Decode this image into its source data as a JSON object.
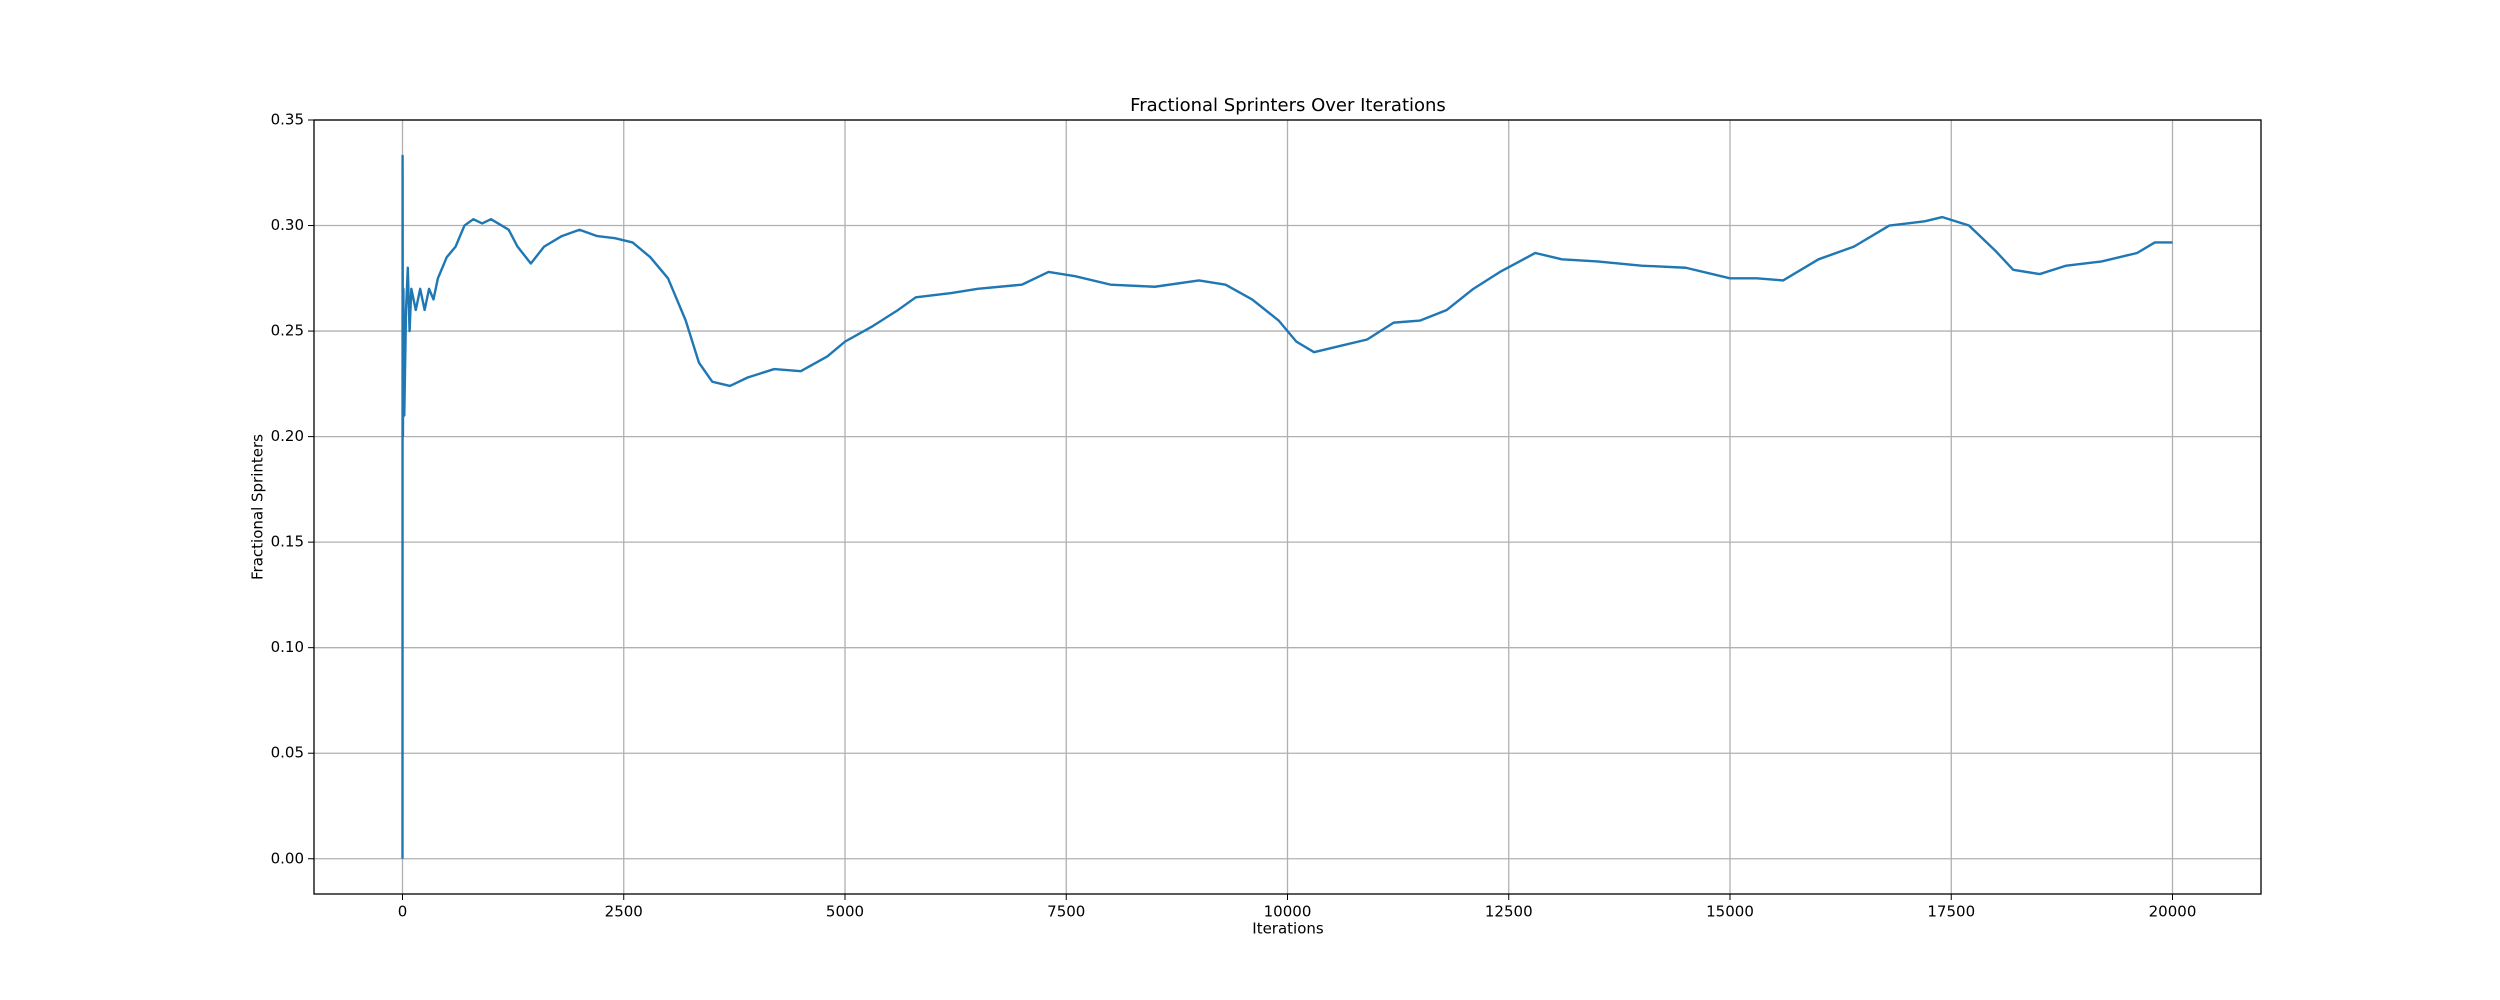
{
  "chart_data": {
    "type": "line",
    "title": "Fractional Sprinters Over Iterations",
    "x_label": "Iterations",
    "y_label": "Fractional Sprinters",
    "x": [
      0,
      1,
      3,
      5,
      10,
      20,
      40,
      60,
      80,
      100,
      150,
      200,
      250,
      300,
      350,
      400,
      450,
      500,
      600,
      700,
      800,
      900,
      1000,
      1200,
      1300,
      1450,
      1600,
      1800,
      2000,
      2200,
      2400,
      2600,
      2800,
      3000,
      3200,
      3350,
      3500,
      3700,
      3900,
      4200,
      4500,
      4800,
      5000,
      5300,
      5600,
      5800,
      6200,
      6500,
      7000,
      7300,
      7600,
      8000,
      8500,
      9000,
      9300,
      9600,
      9900,
      10100,
      10300,
      10600,
      10900,
      11200,
      11500,
      11800,
      12100,
      12400,
      12800,
      13100,
      13500,
      14000,
      14500,
      15000,
      15300,
      15600,
      16000,
      16400,
      16800,
      17200,
      17400,
      17700,
      18000,
      18200,
      18500,
      18800,
      19200,
      19600,
      19800,
      20000
    ],
    "series": [
      {
        "color": "#1f77b4",
        "values": [
          0,
          0.333,
          0.25,
          0.2,
          0.27,
          0.21,
          0.26,
          0.28,
          0.25,
          0.27,
          0.26,
          0.27,
          0.26,
          0.27,
          0.265,
          0.275,
          0.28,
          0.285,
          0.29,
          0.3,
          0.303,
          0.301,
          0.303,
          0.298,
          0.29,
          0.282,
          0.29,
          0.295,
          0.298,
          0.295,
          0.294,
          0.292,
          0.285,
          0.275,
          0.255,
          0.235,
          0.226,
          0.224,
          0.228,
          0.232,
          0.231,
          0.238,
          0.245,
          0.252,
          0.26,
          0.266,
          0.268,
          0.27,
          0.272,
          0.278,
          0.276,
          0.272,
          0.271,
          0.274,
          0.272,
          0.265,
          0.255,
          0.245,
          0.24,
          0.243,
          0.246,
          0.254,
          0.255,
          0.26,
          0.27,
          0.278,
          0.287,
          0.284,
          0.283,
          0.281,
          0.28,
          0.275,
          0.275,
          0.274,
          0.284,
          0.29,
          0.3,
          0.302,
          0.304,
          0.3,
          0.288,
          0.279,
          0.277,
          0.281,
          0.283,
          0.287,
          0.292,
          0.292
        ]
      }
    ],
    "xlim": [
      -1000,
      21000
    ],
    "xticks": [
      0,
      2500,
      5000,
      7500,
      10000,
      12500,
      15000,
      17500,
      20000
    ],
    "ylim": [
      -0.0167,
      0.35
    ],
    "yticks": [
      {
        "value": 0,
        "label": "0.00"
      },
      {
        "value": 0.05,
        "label": "0.05"
      },
      {
        "value": 0.1,
        "label": "0.10"
      },
      {
        "value": 0.15,
        "label": "0.15"
      },
      {
        "value": 0.2,
        "label": "0.20"
      },
      {
        "value": 0.25,
        "label": "0.25"
      },
      {
        "value": 0.3,
        "label": "0.30"
      },
      {
        "value": 0.35,
        "label": "0.35"
      }
    ],
    "grid": true
  }
}
